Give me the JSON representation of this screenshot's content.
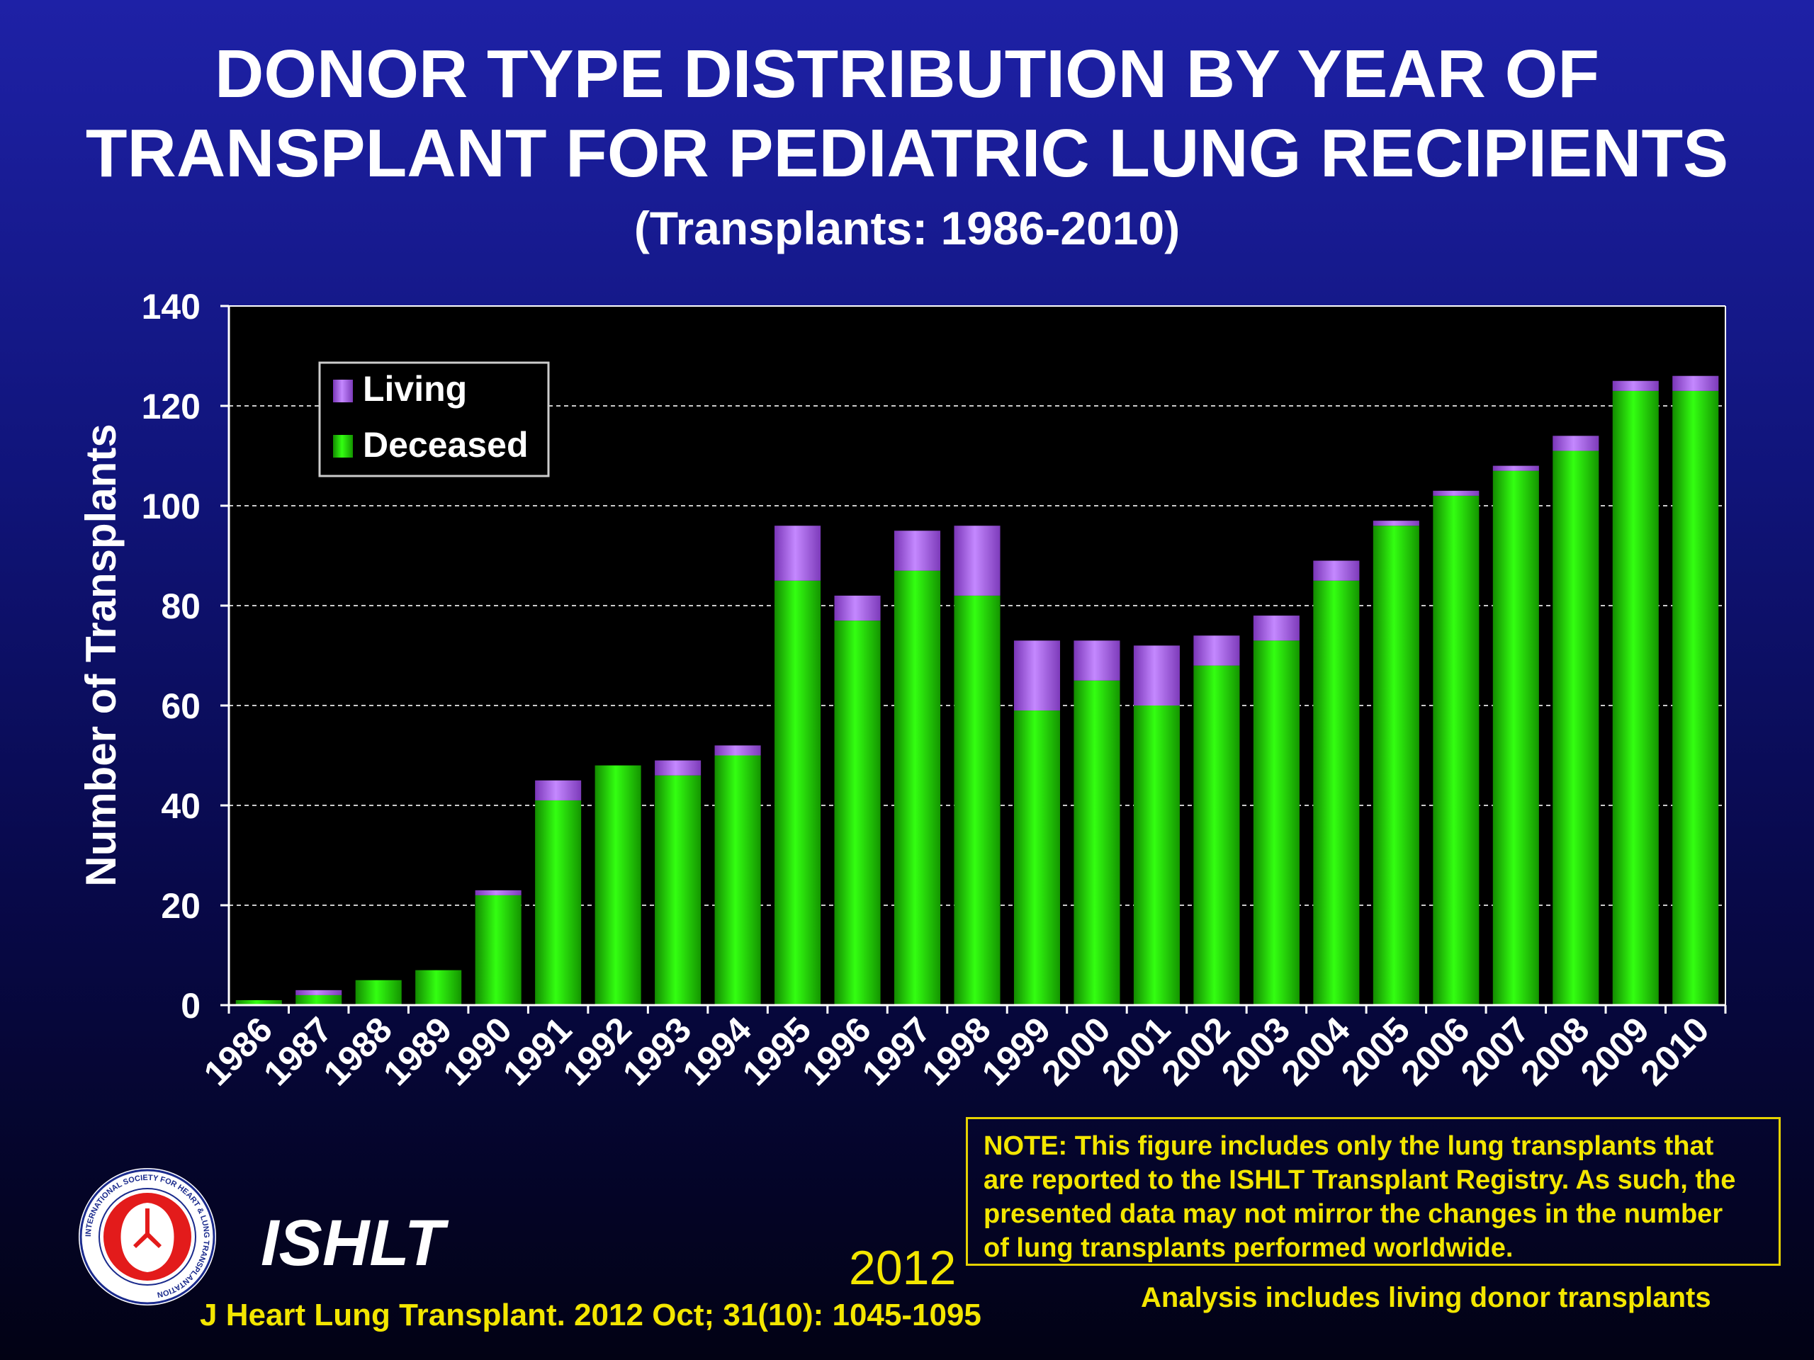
{
  "title_line1": "DONOR TYPE DISTRIBUTION BY YEAR OF",
  "title_line2": "TRANSPLANT FOR PEDIATRIC LUNG RECIPIENTS",
  "subtitle": "(Transplants: 1986-2010)",
  "chart_data": {
    "type": "bar",
    "stacked": true,
    "categories": [
      "1986",
      "1987",
      "1988",
      "1989",
      "1990",
      "1991",
      "1992",
      "1993",
      "1994",
      "1995",
      "1996",
      "1997",
      "1998",
      "1999",
      "2000",
      "2001",
      "2002",
      "2003",
      "2004",
      "2005",
      "2006",
      "2007",
      "2008",
      "2009",
      "2010"
    ],
    "series": [
      {
        "name": "Deceased",
        "color": "#22dd00",
        "values": [
          1,
          2,
          5,
          7,
          22,
          41,
          48,
          46,
          50,
          85,
          77,
          87,
          82,
          59,
          65,
          60,
          68,
          73,
          85,
          96,
          102,
          107,
          111,
          123,
          123
        ]
      },
      {
        "name": "Living",
        "color": "#b060e8",
        "values": [
          0,
          1,
          0,
          0,
          1,
          4,
          0,
          3,
          2,
          11,
          5,
          8,
          14,
          14,
          8,
          12,
          6,
          5,
          4,
          1,
          1,
          1,
          3,
          2,
          3
        ]
      }
    ],
    "ylabel": "Number of Transplants",
    "xlabel": "",
    "ylim": [
      0,
      140
    ],
    "yticks": [
      0,
      20,
      40,
      60,
      80,
      100,
      120,
      140
    ],
    "grid": true,
    "legend_position": "top-left",
    "legend_order": [
      "Living",
      "Deceased"
    ]
  },
  "note": "NOTE: This figure includes only the lung transplants that are reported to the ISHLT Transplant Registry. As such, the presented data may not mirror the changes in the number of lung transplants performed worldwide.",
  "note_lines": [
    "NOTE: This figure includes only the lung transplants that",
    "are reported to the ISHLT Transplant Registry. As such, the",
    "presented data may not mirror the changes in the number",
    "of lung transplants performed worldwide."
  ],
  "analysis_note": "Analysis includes living donor transplants",
  "year": "2012",
  "organization": "ISHLT",
  "citation": "J Heart Lung Transplant.  2012 Oct; 31(10): 1045-1095",
  "logo_text": "INTERNATIONAL SOCIETY FOR HEART & LUNG TRANSPLANTATION",
  "colors": {
    "text_accent": "#f3e600",
    "background_top": "#1e21a6",
    "background_bottom": "#020214"
  }
}
